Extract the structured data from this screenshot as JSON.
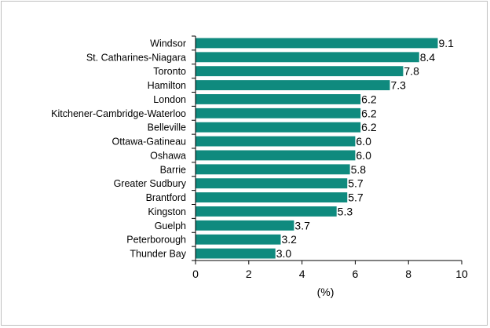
{
  "chart_data": {
    "type": "bar",
    "orientation": "horizontal",
    "categories": [
      "Windsor",
      "St. Catharines-Niagara",
      "Toronto",
      "Hamilton",
      "London",
      "Kitchener-Cambridge-Waterloo",
      "Belleville",
      "Ottawa-Gatineau",
      "Oshawa",
      "Barrie",
      "Greater Sudbury",
      "Brantford",
      "Kingston",
      "Guelph",
      "Peterborough",
      "Thunder Bay"
    ],
    "values": [
      9.1,
      8.4,
      7.8,
      7.3,
      6.2,
      6.2,
      6.2,
      6.0,
      6.0,
      5.8,
      5.7,
      5.7,
      5.3,
      3.7,
      3.2,
      3.0
    ],
    "value_labels": [
      "9.1",
      "8.4",
      "7.8",
      "7.3",
      "6.2",
      "6.2",
      "6.2",
      "6.0",
      "6.0",
      "5.8",
      "5.7",
      "5.7",
      "5.3",
      "3.7",
      "3.2",
      "3.0"
    ],
    "xlabel": "(%)",
    "ylabel": "",
    "title": "",
    "xlim": [
      0,
      10
    ],
    "x_ticks": [
      0,
      2,
      4,
      6,
      8,
      10
    ],
    "x_tick_labels": [
      "0",
      "2",
      "4",
      "6",
      "8",
      "10"
    ],
    "grid": false,
    "legend": "none",
    "bar_color": "#0F8A7E"
  }
}
